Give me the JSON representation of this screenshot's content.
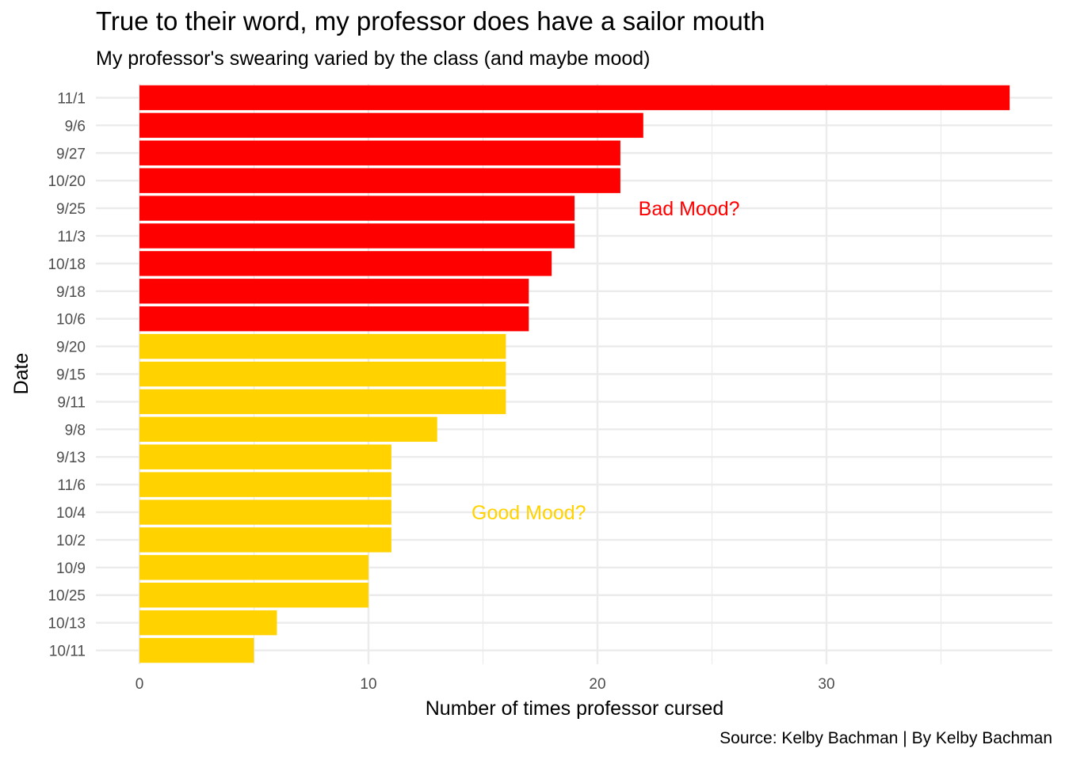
{
  "chart_data": {
    "type": "bar",
    "orientation": "horizontal",
    "title": "True to their word, my professor does have a sailor mouth",
    "subtitle": "My professor's swearing varied by the class (and maybe mood)",
    "caption": "Source: Kelby Bachman | By Kelby Bachman",
    "xlabel": "Number of times professor cursed",
    "ylabel": "Date",
    "xlim": [
      0,
      38
    ],
    "xticks": [
      0,
      10,
      20,
      30
    ],
    "grid": true,
    "categories": [
      "11/1",
      "9/6",
      "9/27",
      "10/20",
      "9/25",
      "11/3",
      "10/18",
      "9/18",
      "10/6",
      "9/20",
      "9/15",
      "9/11",
      "9/8",
      "9/13",
      "11/6",
      "10/4",
      "10/2",
      "10/9",
      "10/25",
      "10/13",
      "10/11"
    ],
    "values": [
      38,
      22,
      21,
      21,
      19,
      19,
      18,
      17,
      17,
      16,
      16,
      16,
      13,
      11,
      11,
      11,
      11,
      10,
      10,
      6,
      5
    ],
    "groups": [
      "bad",
      "bad",
      "bad",
      "bad",
      "bad",
      "bad",
      "bad",
      "bad",
      "bad",
      "good",
      "good",
      "good",
      "good",
      "good",
      "good",
      "good",
      "good",
      "good",
      "good",
      "good",
      "good"
    ],
    "colors": {
      "bad": "#FF0000",
      "good": "#FFD200"
    },
    "annotations": [
      {
        "text": "Bad Mood?",
        "x": 24,
        "category": "9/25",
        "group": "bad"
      },
      {
        "text": "Good Mood?",
        "x": 17,
        "category": "10/4",
        "group": "good"
      }
    ]
  }
}
